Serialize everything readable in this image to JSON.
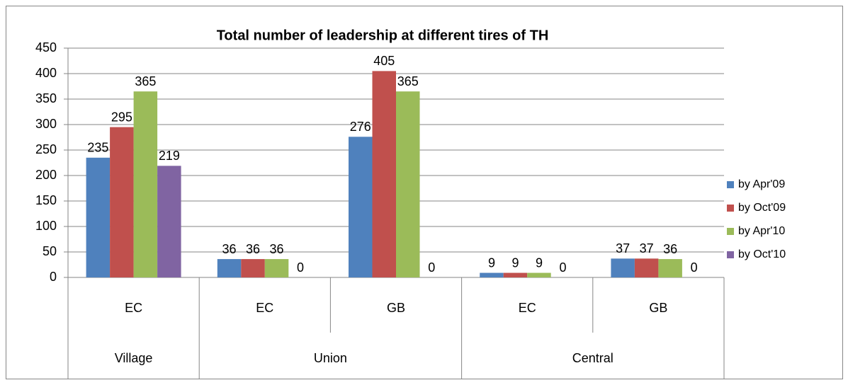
{
  "chart_data": {
    "type": "bar",
    "title": "Total number of leadership at different tires of TH",
    "categories": [
      "EC",
      "EC",
      "GB",
      "EC",
      "GB"
    ],
    "category_groups": [
      "Village",
      "Union",
      "Union",
      "Central",
      "Central"
    ],
    "series": [
      {
        "name": "by Apr'09",
        "color": "#4F81BD",
        "values": [
          235,
          36,
          276,
          9,
          37
        ]
      },
      {
        "name": "by Oct'09",
        "color": "#C0504D",
        "values": [
          295,
          36,
          405,
          9,
          37
        ]
      },
      {
        "name": "by Apr'10",
        "color": "#9BBB59",
        "values": [
          365,
          36,
          365,
          9,
          36
        ]
      },
      {
        "name": "by Oct'10",
        "color": "#8064A2",
        "values": [
          219,
          0,
          0,
          0,
          0
        ]
      }
    ],
    "ylim": [
      0,
      450
    ],
    "yticks": [
      0,
      50,
      100,
      150,
      200,
      250,
      300,
      350,
      400,
      450
    ],
    "grid": true,
    "data_labels": true,
    "legend": "right"
  }
}
